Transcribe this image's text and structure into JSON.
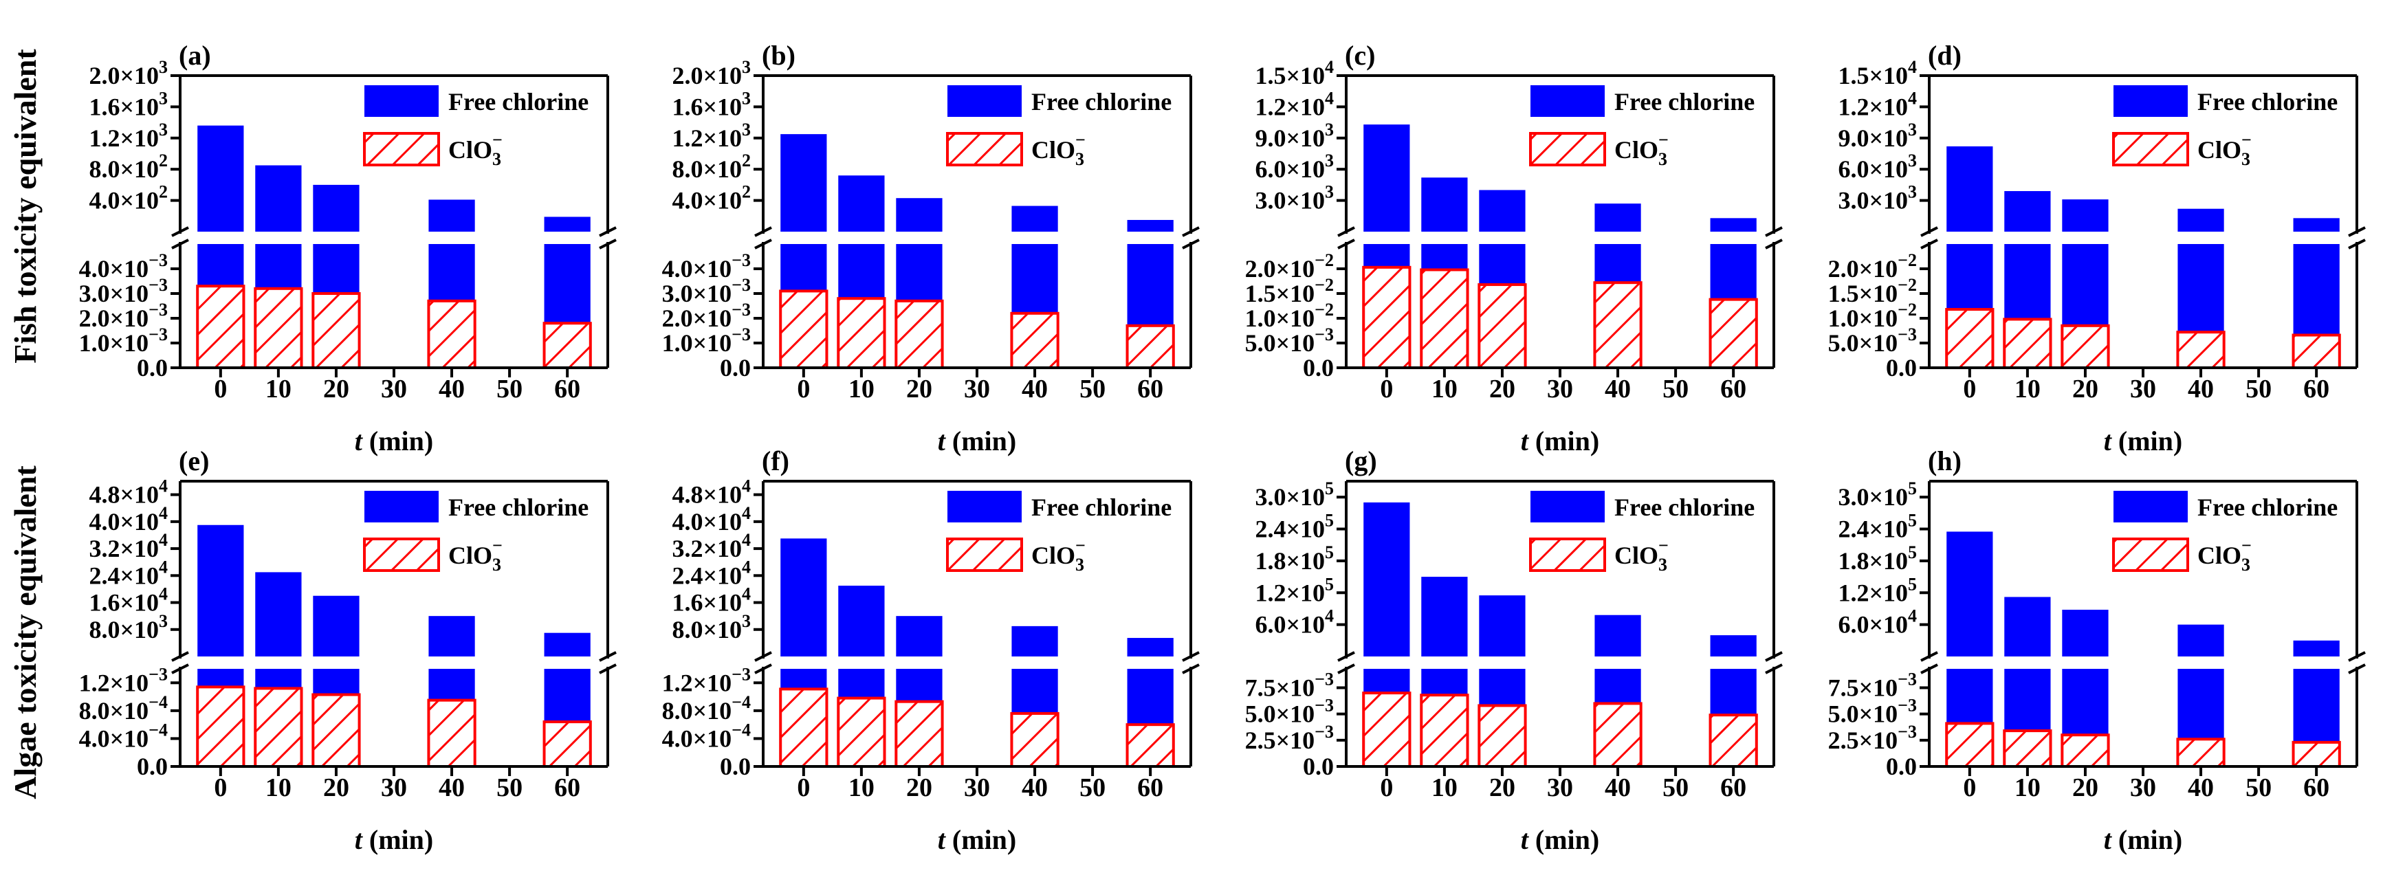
{
  "figure": {
    "row_labels": [
      "Fish toxicity equivalent",
      "Algae toxicity equivalent"
    ],
    "legend": {
      "free_chlorine": "Free chlorine",
      "chlorate_base": "ClO",
      "chlorate_sub": "3",
      "chlorate_sup": "−"
    },
    "xlabel_italic": "t",
    "xlabel_rest": " (min)",
    "colors": {
      "free_chlorine": "#0000ff",
      "chlorate_hatch": "#ff0000"
    }
  },
  "chart_data": [
    {
      "panel": "(a)",
      "type": "bar",
      "x": [
        0,
        10,
        20,
        40,
        60
      ],
      "xticks": [
        "0",
        "10",
        "20",
        "30",
        "40",
        "50",
        "60"
      ],
      "xlim": [
        -7,
        67
      ],
      "series": [
        {
          "name": "Free chlorine",
          "values": [
            1360,
            850,
            600,
            410,
            190
          ]
        },
        {
          "name": "ClO3−",
          "values": [
            0.0033,
            0.0032,
            0.003,
            0.0027,
            0.0018
          ]
        }
      ],
      "upper_ylim": [
        0,
        2000
      ],
      "upper_ticks": [
        {
          "v": 400,
          "m": "4.0",
          "e": "2"
        },
        {
          "v": 800,
          "m": "8.0",
          "e": "2"
        },
        {
          "v": 1200,
          "m": "1.2",
          "e": "3"
        },
        {
          "v": 1600,
          "m": "1.6",
          "e": "3"
        },
        {
          "v": 2000,
          "m": "2.0",
          "e": "3"
        }
      ],
      "lower_ylim": [
        0,
        0.005
      ],
      "lower_ticks": [
        {
          "v": 0,
          "m": "0.0",
          "e": ""
        },
        {
          "v": 0.001,
          "m": "1.0",
          "e": "-3"
        },
        {
          "v": 0.002,
          "m": "2.0",
          "e": "-3"
        },
        {
          "v": 0.003,
          "m": "3.0",
          "e": "-3"
        },
        {
          "v": 0.004,
          "m": "4.0",
          "e": "-3"
        }
      ]
    },
    {
      "panel": "(b)",
      "type": "bar",
      "x": [
        0,
        10,
        20,
        40,
        60
      ],
      "xticks": [
        "0",
        "10",
        "20",
        "30",
        "40",
        "50",
        "60"
      ],
      "xlim": [
        -7,
        67
      ],
      "series": [
        {
          "name": "Free chlorine",
          "values": [
            1250,
            720,
            430,
            330,
            150
          ]
        },
        {
          "name": "ClO3−",
          "values": [
            0.0031,
            0.0028,
            0.0027,
            0.0022,
            0.0017
          ]
        }
      ],
      "upper_ylim": [
        0,
        2000
      ],
      "upper_ticks": [
        {
          "v": 400,
          "m": "4.0",
          "e": "2"
        },
        {
          "v": 800,
          "m": "8.0",
          "e": "2"
        },
        {
          "v": 1200,
          "m": "1.2",
          "e": "3"
        },
        {
          "v": 1600,
          "m": "1.6",
          "e": "3"
        },
        {
          "v": 2000,
          "m": "2.0",
          "e": "3"
        }
      ],
      "lower_ylim": [
        0,
        0.005
      ],
      "lower_ticks": [
        {
          "v": 0,
          "m": "0.0",
          "e": ""
        },
        {
          "v": 0.001,
          "m": "1.0",
          "e": "-3"
        },
        {
          "v": 0.002,
          "m": "2.0",
          "e": "-3"
        },
        {
          "v": 0.003,
          "m": "3.0",
          "e": "-3"
        },
        {
          "v": 0.004,
          "m": "4.0",
          "e": "-3"
        }
      ]
    },
    {
      "panel": "(c)",
      "type": "bar",
      "x": [
        0,
        10,
        20,
        40,
        60
      ],
      "xticks": [
        "0",
        "10",
        "20",
        "30",
        "40",
        "50",
        "60"
      ],
      "xlim": [
        -7,
        67
      ],
      "series": [
        {
          "name": "Free chlorine",
          "values": [
            10300,
            5200,
            4000,
            2700,
            1300
          ]
        },
        {
          "name": "ClO3−",
          "values": [
            0.0203,
            0.0198,
            0.0168,
            0.0172,
            0.0138
          ]
        }
      ],
      "upper_ylim": [
        0,
        15000
      ],
      "upper_ticks": [
        {
          "v": 3000,
          "m": "3.0",
          "e": "3"
        },
        {
          "v": 6000,
          "m": "6.0",
          "e": "3"
        },
        {
          "v": 9000,
          "m": "9.0",
          "e": "3"
        },
        {
          "v": 12000,
          "m": "1.2",
          "e": "4"
        },
        {
          "v": 15000,
          "m": "1.5",
          "e": "4"
        }
      ],
      "lower_ylim": [
        0,
        0.025
      ],
      "lower_ticks": [
        {
          "v": 0,
          "m": "0.0",
          "e": ""
        },
        {
          "v": 0.005,
          "m": "5.0",
          "e": "-3"
        },
        {
          "v": 0.01,
          "m": "1.0",
          "e": "-2"
        },
        {
          "v": 0.015,
          "m": "1.5",
          "e": "-2"
        },
        {
          "v": 0.02,
          "m": "2.0",
          "e": "-2"
        }
      ]
    },
    {
      "panel": "(d)",
      "type": "bar",
      "x": [
        0,
        10,
        20,
        40,
        60
      ],
      "xticks": [
        "0",
        "10",
        "20",
        "30",
        "40",
        "50",
        "60"
      ],
      "xlim": [
        -7,
        67
      ],
      "series": [
        {
          "name": "Free chlorine",
          "values": [
            8200,
            3900,
            3100,
            2200,
            1300
          ]
        },
        {
          "name": "ClO3−",
          "values": [
            0.0118,
            0.0098,
            0.0085,
            0.0072,
            0.0066
          ]
        }
      ],
      "upper_ylim": [
        0,
        15000
      ],
      "upper_ticks": [
        {
          "v": 3000,
          "m": "3.0",
          "e": "3"
        },
        {
          "v": 6000,
          "m": "6.0",
          "e": "3"
        },
        {
          "v": 9000,
          "m": "9.0",
          "e": "3"
        },
        {
          "v": 12000,
          "m": "1.2",
          "e": "4"
        },
        {
          "v": 15000,
          "m": "1.5",
          "e": "4"
        }
      ],
      "lower_ylim": [
        0,
        0.025
      ],
      "lower_ticks": [
        {
          "v": 0,
          "m": "0.0",
          "e": ""
        },
        {
          "v": 0.005,
          "m": "5.0",
          "e": "-3"
        },
        {
          "v": 0.01,
          "m": "1.0",
          "e": "-2"
        },
        {
          "v": 0.015,
          "m": "1.5",
          "e": "-2"
        },
        {
          "v": 0.02,
          "m": "2.0",
          "e": "-2"
        }
      ]
    },
    {
      "panel": "(e)",
      "type": "bar",
      "x": [
        0,
        10,
        20,
        40,
        60
      ],
      "xticks": [
        "0",
        "10",
        "20",
        "30",
        "40",
        "50",
        "60"
      ],
      "xlim": [
        -7,
        67
      ],
      "series": [
        {
          "name": "Free chlorine",
          "values": [
            39000,
            25000,
            18000,
            12000,
            7000
          ]
        },
        {
          "name": "ClO3−",
          "values": [
            0.00114,
            0.00112,
            0.00103,
            0.00095,
            0.00064
          ]
        }
      ],
      "upper_ylim": [
        0,
        52000
      ],
      "upper_ticks": [
        {
          "v": 8000,
          "m": "8.0",
          "e": "3"
        },
        {
          "v": 16000,
          "m": "1.6",
          "e": "4"
        },
        {
          "v": 24000,
          "m": "2.4",
          "e": "4"
        },
        {
          "v": 32000,
          "m": "3.2",
          "e": "4"
        },
        {
          "v": 40000,
          "m": "4.0",
          "e": "4"
        },
        {
          "v": 48000,
          "m": "4.8",
          "e": "4"
        }
      ],
      "lower_ylim": [
        0,
        0.0014
      ],
      "lower_ticks": [
        {
          "v": 0,
          "m": "0.0",
          "e": ""
        },
        {
          "v": 0.0004,
          "m": "4.0",
          "e": "-4"
        },
        {
          "v": 0.0008,
          "m": "8.0",
          "e": "-4"
        },
        {
          "v": 0.0012,
          "m": "1.2",
          "e": "-3"
        }
      ]
    },
    {
      "panel": "(f)",
      "type": "bar",
      "x": [
        0,
        10,
        20,
        40,
        60
      ],
      "xticks": [
        "0",
        "10",
        "20",
        "30",
        "40",
        "50",
        "60"
      ],
      "xlim": [
        -7,
        67
      ],
      "series": [
        {
          "name": "Free chlorine",
          "values": [
            35000,
            21000,
            12000,
            9000,
            5500
          ]
        },
        {
          "name": "ClO3−",
          "values": [
            0.00111,
            0.00098,
            0.00093,
            0.00076,
            0.0006
          ]
        }
      ],
      "upper_ylim": [
        0,
        52000
      ],
      "upper_ticks": [
        {
          "v": 8000,
          "m": "8.0",
          "e": "3"
        },
        {
          "v": 16000,
          "m": "1.6",
          "e": "4"
        },
        {
          "v": 24000,
          "m": "2.4",
          "e": "4"
        },
        {
          "v": 32000,
          "m": "3.2",
          "e": "4"
        },
        {
          "v": 40000,
          "m": "4.0",
          "e": "4"
        },
        {
          "v": 48000,
          "m": "4.8",
          "e": "4"
        }
      ],
      "lower_ylim": [
        0,
        0.0014
      ],
      "lower_ticks": [
        {
          "v": 0,
          "m": "0.0",
          "e": ""
        },
        {
          "v": 0.0004,
          "m": "4.0",
          "e": "-4"
        },
        {
          "v": 0.0008,
          "m": "8.0",
          "e": "-4"
        },
        {
          "v": 0.0012,
          "m": "1.2",
          "e": "-3"
        }
      ]
    },
    {
      "panel": "(g)",
      "type": "bar",
      "x": [
        0,
        10,
        20,
        40,
        60
      ],
      "xticks": [
        "0",
        "10",
        "20",
        "30",
        "40",
        "50",
        "60"
      ],
      "xlim": [
        -7,
        67
      ],
      "series": [
        {
          "name": "Free chlorine",
          "values": [
            290000,
            150000,
            115000,
            78000,
            40000
          ]
        },
        {
          "name": "ClO3−",
          "values": [
            0.007,
            0.0068,
            0.0058,
            0.006,
            0.0049
          ]
        }
      ],
      "upper_ylim": [
        0,
        330000
      ],
      "upper_ticks": [
        {
          "v": 60000,
          "m": "6.0",
          "e": "4"
        },
        {
          "v": 120000,
          "m": "1.2",
          "e": "5"
        },
        {
          "v": 180000,
          "m": "1.8",
          "e": "5"
        },
        {
          "v": 240000,
          "m": "2.4",
          "e": "5"
        },
        {
          "v": 300000,
          "m": "3.0",
          "e": "5"
        }
      ],
      "lower_ylim": [
        0,
        0.0093
      ],
      "lower_ticks": [
        {
          "v": 0,
          "m": "0.0",
          "e": ""
        },
        {
          "v": 0.0025,
          "m": "2.5",
          "e": "-3"
        },
        {
          "v": 0.005,
          "m": "5.0",
          "e": "-3"
        },
        {
          "v": 0.0075,
          "m": "7.5",
          "e": "-3"
        }
      ]
    },
    {
      "panel": "(h)",
      "type": "bar",
      "x": [
        0,
        10,
        20,
        40,
        60
      ],
      "xticks": [
        "0",
        "10",
        "20",
        "30",
        "40",
        "50",
        "60"
      ],
      "xlim": [
        -7,
        67
      ],
      "series": [
        {
          "name": "Free chlorine",
          "values": [
            235000,
            112000,
            88000,
            60000,
            30000
          ]
        },
        {
          "name": "ClO3−",
          "values": [
            0.0041,
            0.0034,
            0.003,
            0.0026,
            0.0023
          ]
        }
      ],
      "upper_ylim": [
        0,
        330000
      ],
      "upper_ticks": [
        {
          "v": 60000,
          "m": "6.0",
          "e": "4"
        },
        {
          "v": 120000,
          "m": "1.2",
          "e": "5"
        },
        {
          "v": 180000,
          "m": "1.8",
          "e": "5"
        },
        {
          "v": 240000,
          "m": "2.4",
          "e": "5"
        },
        {
          "v": 300000,
          "m": "3.0",
          "e": "5"
        }
      ],
      "lower_ylim": [
        0,
        0.0093
      ],
      "lower_ticks": [
        {
          "v": 0,
          "m": "0.0",
          "e": ""
        },
        {
          "v": 0.0025,
          "m": "2.5",
          "e": "-3"
        },
        {
          "v": 0.005,
          "m": "5.0",
          "e": "-3"
        },
        {
          "v": 0.0075,
          "m": "7.5",
          "e": "-3"
        }
      ]
    }
  ]
}
